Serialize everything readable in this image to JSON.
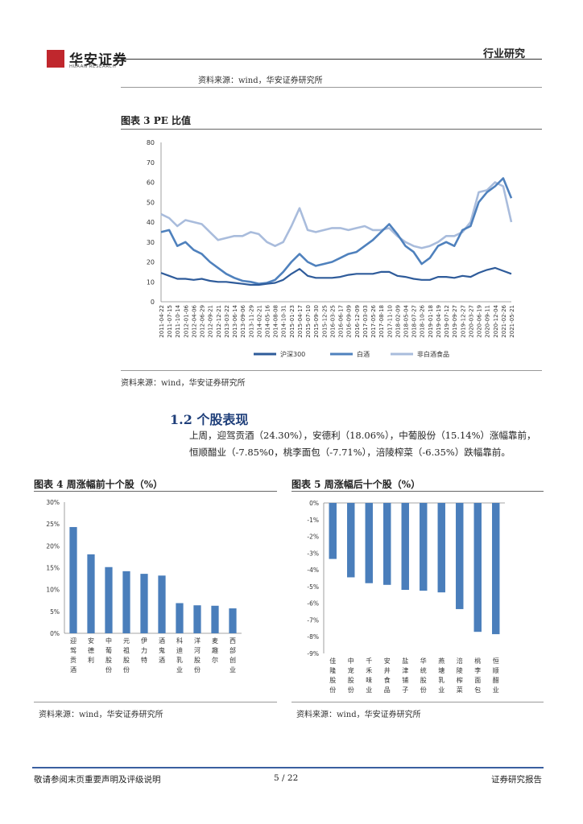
{
  "header": {
    "company_name": "华安证券",
    "company_sub": "HUAAN RESEARCH",
    "category": "行业研究",
    "top_source": "资料来源：wind，华安证券研究所"
  },
  "figure3": {
    "title": "图表 3 PE 比值",
    "source": "资料来源：wind，华安证券研究所"
  },
  "section": {
    "title": "1.2 个股表现",
    "para1": "上周，迎驾贡酒（24.30%），安德利（18.06%），中葡股份（15.14%）涨幅靠前，",
    "para2": "恒顺醋业（-7.85%0，桃李面包（-7.71%），涪陵榨菜（-6.35%）跌幅靠前。"
  },
  "figure4": {
    "title": "图表 4 周涨幅前十个股（%）",
    "source": "资料来源：wind，华安证券研究所"
  },
  "figure5": {
    "title": "图表 5 周涨幅后十个股（%）",
    "source": "资料来源：wind，华安证券研究所"
  },
  "footer": {
    "left": "敬请参阅末页重要声明及评级说明",
    "page": "5 / 22",
    "right": "证券研究报告"
  },
  "colors": {
    "hs300": "#2e5b9a",
    "baijiu": "#4f81bd",
    "nonbaijiu": "#a9bcdc",
    "bar": "#4a7ebb"
  },
  "chart_data": [
    {
      "type": "line",
      "title": "图表 3 PE 比值",
      "ylim": [
        0,
        80
      ],
      "yticks": [
        0,
        10,
        20,
        30,
        40,
        50,
        60,
        70,
        80
      ],
      "x": [
        "2011-04-22",
        "2011-07-15",
        "2011-10-14",
        "2012-01-06",
        "2012-04-06",
        "2012-06-29",
        "2012-09-21",
        "2012-12-21",
        "2013-03-22",
        "2013-06-14",
        "2013-09-06",
        "2013-11-29",
        "2014-02-21",
        "2014-05-16",
        "2014-08-08",
        "2014-10-31",
        "2015-01-23",
        "2015-04-17",
        "2015-07-10",
        "2015-09-30",
        "2015-12-25",
        "2016-03-25",
        "2016-06-17",
        "2016-09-09",
        "2016-12-09",
        "2017-03-03",
        "2017-05-26",
        "2017-08-18",
        "2017-11-10",
        "2018-02-09",
        "2018-05-04",
        "2018-07-27",
        "2018-10-26",
        "2019-01-18",
        "2019-04-19",
        "2019-07-12",
        "2019-09-27",
        "2019-12-27",
        "2020-03-27",
        "2020-06-19",
        "2020-09-11",
        "2020-12-04",
        "2021-02-26",
        "2021-05-21"
      ],
      "legend": [
        "沪深300",
        "白酒",
        "非白酒食品"
      ],
      "series": [
        {
          "name": "沪深300",
          "values": [
            14.5,
            13,
            11.5,
            11.5,
            11,
            11.5,
            10.5,
            10,
            10,
            9.5,
            9,
            8.5,
            8.5,
            9,
            9.5,
            11,
            14,
            16.5,
            13,
            12,
            12,
            12,
            12.5,
            13.5,
            14,
            14,
            14,
            15,
            15,
            13,
            12.5,
            11.5,
            11,
            11,
            12.5,
            12.5,
            12,
            13,
            12.5,
            14.5,
            16,
            17,
            15.5,
            14
          ]
        },
        {
          "name": "白酒",
          "values": [
            35,
            36,
            28,
            30,
            26,
            24,
            20,
            17,
            14,
            12,
            10.5,
            10,
            9,
            9.5,
            11,
            15,
            20,
            24,
            20,
            18,
            19,
            20,
            22,
            24,
            25,
            28,
            31,
            35,
            39,
            34,
            28,
            25,
            19,
            22,
            28,
            30,
            28,
            36,
            38,
            50,
            55,
            58,
            62,
            52
          ]
        },
        {
          "name": "非白酒食品",
          "values": [
            44,
            42,
            38,
            41,
            40,
            39,
            35,
            31,
            32,
            33,
            33,
            35,
            34,
            30,
            28,
            30,
            38,
            47,
            36,
            35,
            36,
            37,
            37,
            36,
            37,
            38,
            36,
            36,
            37,
            33,
            30,
            28,
            27,
            28,
            30,
            33,
            33,
            35,
            40,
            55,
            56,
            60,
            58,
            40
          ]
        }
      ]
    },
    {
      "type": "bar",
      "title": "图表 4 周涨幅前十个股（%）",
      "ylim": [
        0,
        30
      ],
      "yticks": [
        "0%",
        "5%",
        "10%",
        "15%",
        "20%",
        "25%",
        "30%"
      ],
      "categories": [
        "迎驾贡酒",
        "安德利",
        "中葡股份",
        "元祖股份",
        "伊力特",
        "酒鬼酒",
        "科迪乳业",
        "洋河股份",
        "麦趣尔",
        "西部创业"
      ],
      "values": [
        24.3,
        18.06,
        15.14,
        14.2,
        13.6,
        13.2,
        6.9,
        6.4,
        6.3,
        5.7
      ]
    },
    {
      "type": "bar",
      "title": "图表 5 周涨幅后十个股（%）",
      "ylim": [
        -9,
        0
      ],
      "yticks": [
        "0%",
        "-1%",
        "-2%",
        "-3%",
        "-4%",
        "-5%",
        "-6%",
        "-7%",
        "-8%",
        "-9%"
      ],
      "categories": [
        "佳隆股份",
        "中宠股份",
        "千禾味业",
        "安井食品",
        "盐津铺子",
        "华统股份",
        "燕塘乳业",
        "涪陵榨菜",
        "桃李面包",
        "恒顺醋业"
      ],
      "values": [
        -3.35,
        -4.45,
        -4.8,
        -4.9,
        -5.2,
        -5.25,
        -5.35,
        -6.35,
        -7.71,
        -7.85
      ]
    }
  ]
}
